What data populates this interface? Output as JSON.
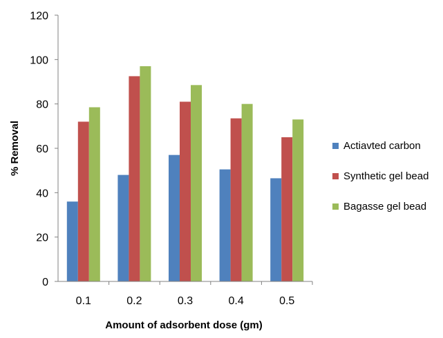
{
  "chart_data": {
    "type": "bar",
    "categories": [
      "0.1",
      "0.2",
      "0.3",
      "0.4",
      "0.5"
    ],
    "series": [
      {
        "name": "Actiavted carbon",
        "values": [
          36,
          48,
          57,
          50.5,
          46.5
        ],
        "color": "#4f81bd"
      },
      {
        "name": "Synthetic gel bead",
        "values": [
          72,
          92.5,
          81,
          73.5,
          65
        ],
        "color": "#c0504d"
      },
      {
        "name": "Bagasse gel bead",
        "values": [
          78.5,
          97,
          88.5,
          80,
          73
        ],
        "color": "#9bbb59"
      }
    ],
    "xlabel": "Amount of adsorbent dose (gm)",
    "ylabel": "% Removal",
    "ylim": [
      0,
      120
    ],
    "yticks": [
      "0",
      "20",
      "40",
      "60",
      "80",
      "100",
      "120"
    ],
    "grid": false,
    "legend_position": "right"
  }
}
